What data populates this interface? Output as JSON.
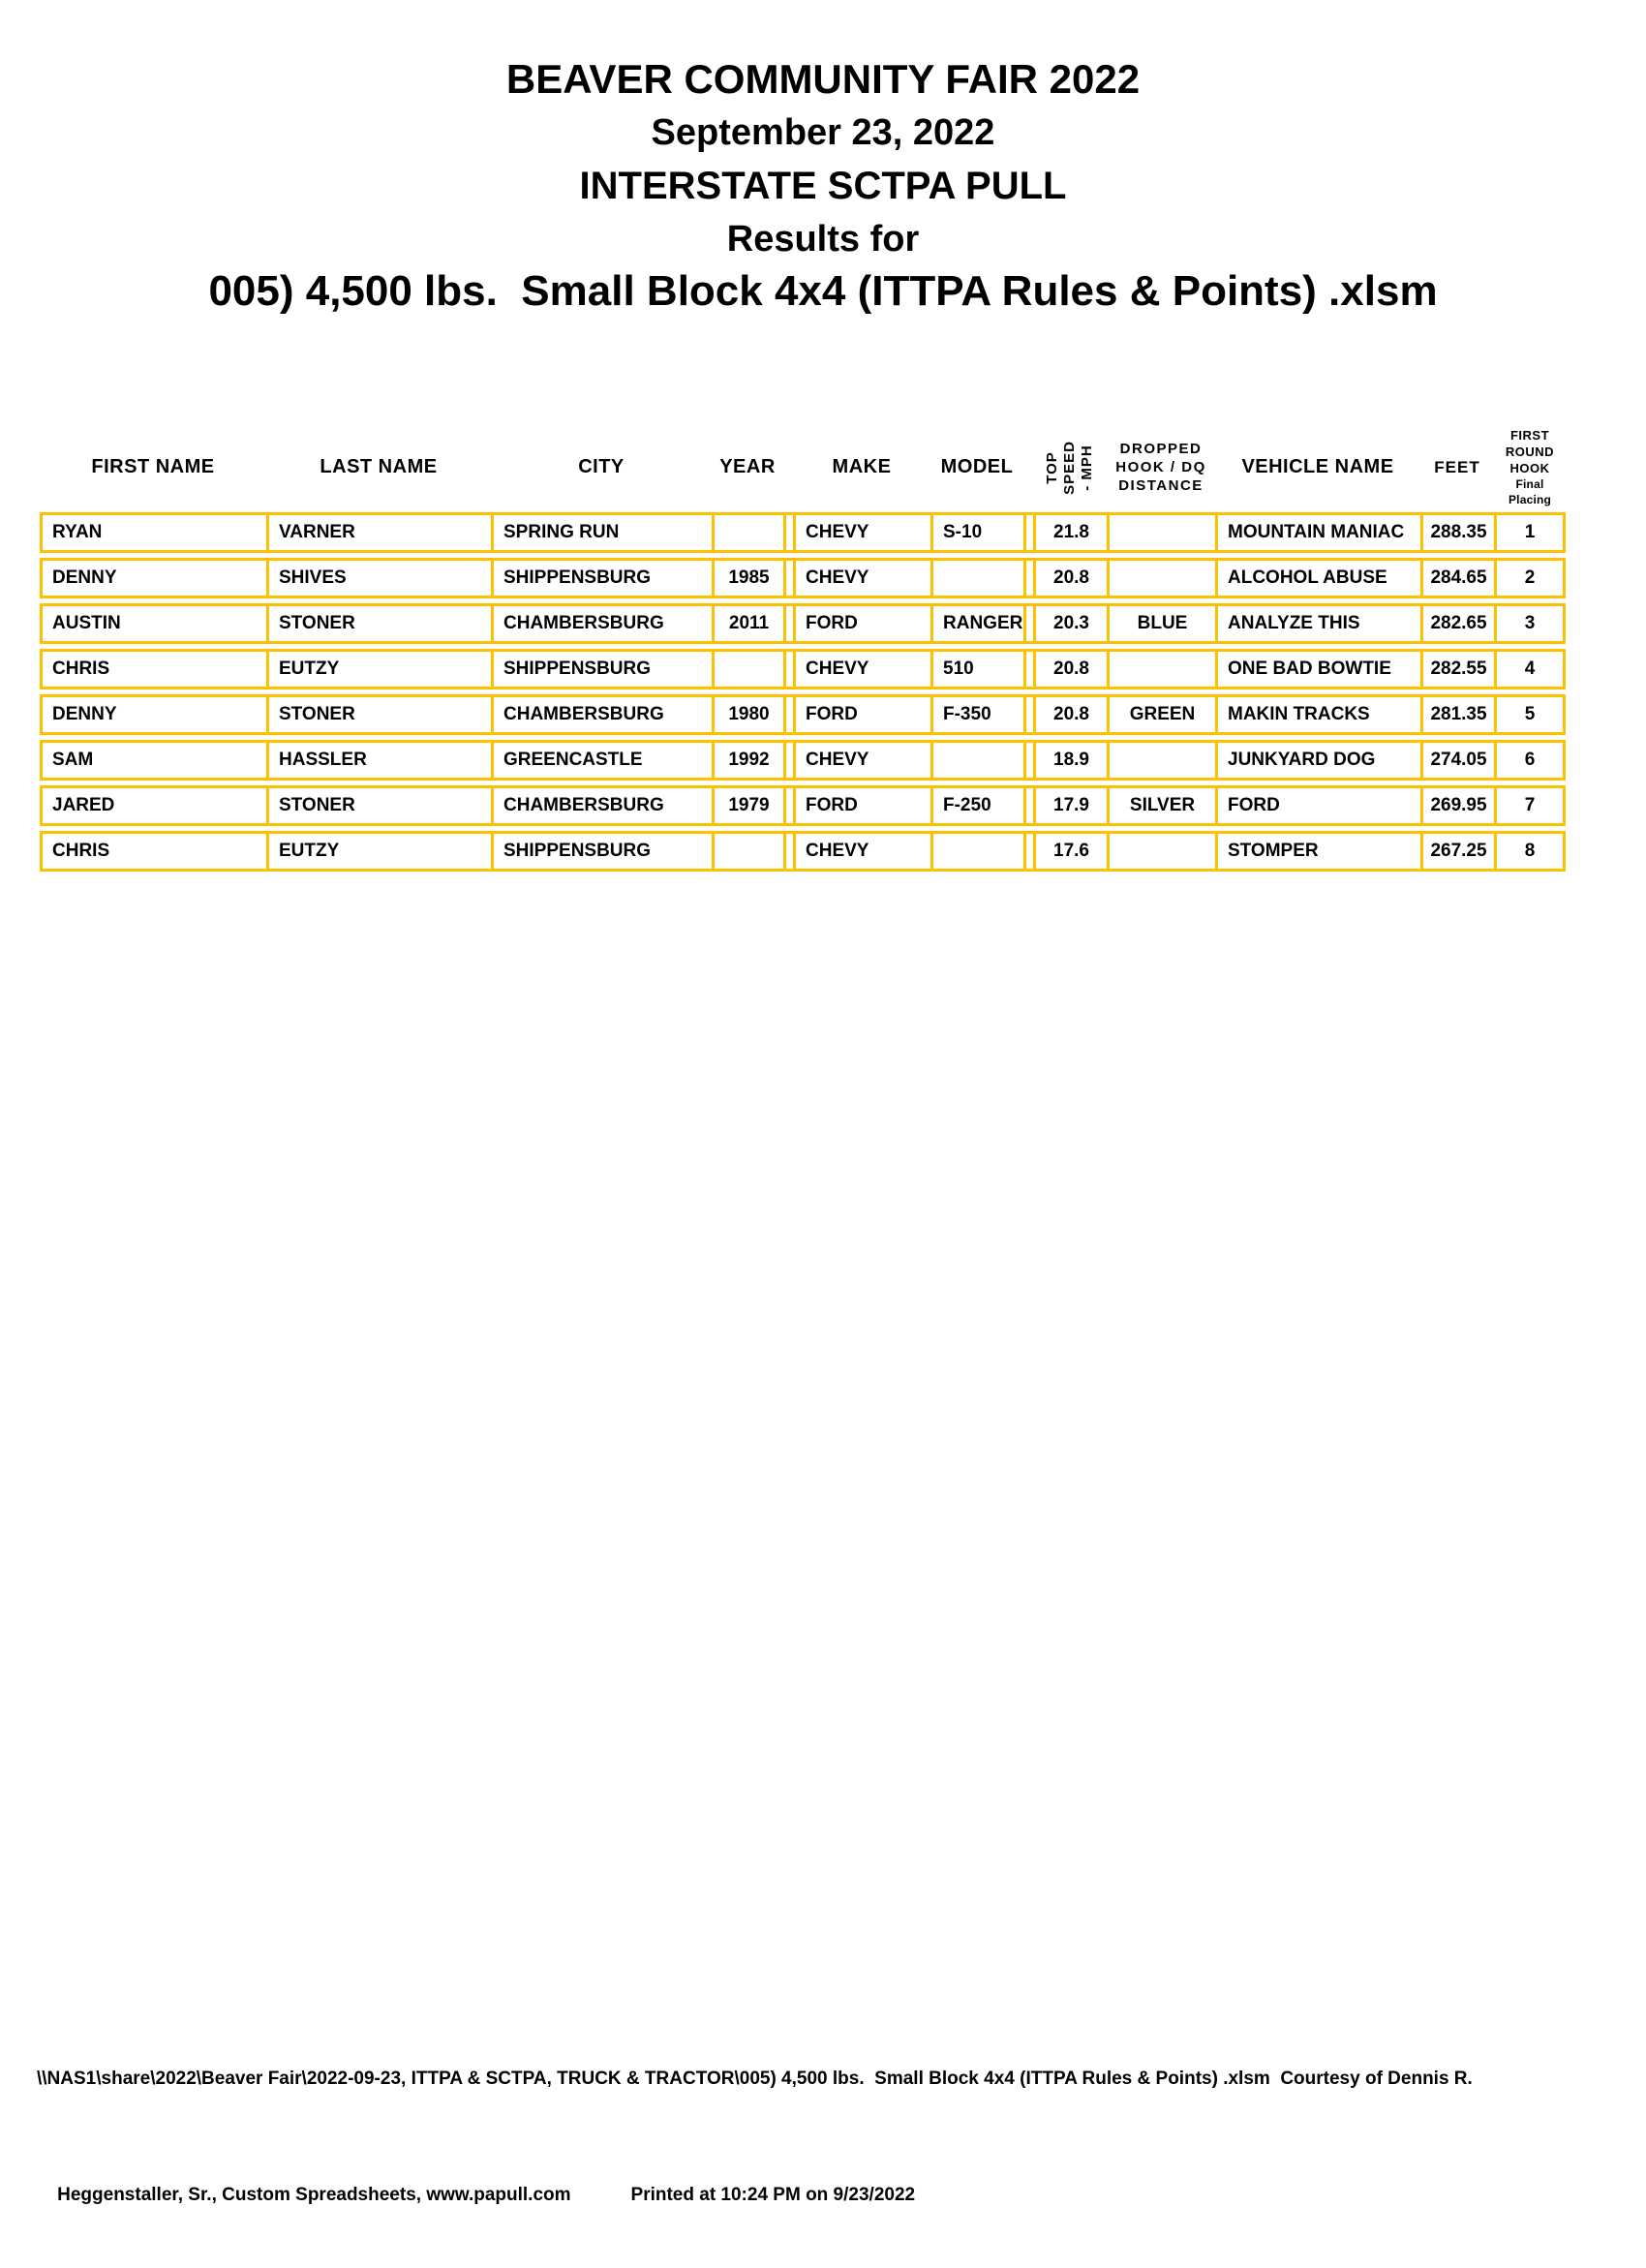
{
  "colors": {
    "table_border": "#FFC000",
    "text": "#000000",
    "background": "#FFFFFF"
  },
  "document": {
    "title_lines": [
      "BEAVER COMMUNITY FAIR 2022",
      "September 23, 2022",
      "INTERSTATE SCTPA PULL",
      "Results for",
      "005) 4,500 lbs.  Small Block 4x4 (ITTPA Rules & Points) .xlsm"
    ]
  },
  "table": {
    "headers": {
      "first_name": "FIRST NAME",
      "last_name": "LAST NAME",
      "city": "CITY",
      "year": "YEAR",
      "make": "MAKE",
      "model": "MODEL",
      "top_speed_lines": [
        "TOP",
        "SPEED",
        "- MPH"
      ],
      "dropped_lines": [
        "DROPPED",
        "HOOK / DQ",
        "DISTANCE"
      ],
      "vehicle": "VEHICLE NAME",
      "feet": "FEET",
      "first_round_lines": [
        "FIRST ROUND",
        "HOOK"
      ],
      "final_placing": "Final Placing"
    },
    "rows": [
      {
        "first_name": "RYAN",
        "last_name": "VARNER",
        "city": "SPRING RUN",
        "year": "",
        "make": "CHEVY",
        "model": "S-10",
        "top_speed": "21.8",
        "dropped": "",
        "vehicle": "MOUNTAIN MANIAC",
        "feet": "288.35",
        "placing": "1"
      },
      {
        "first_name": "DENNY",
        "last_name": "SHIVES",
        "city": "SHIPPENSBURG",
        "year": "1985",
        "make": "CHEVY",
        "model": "",
        "top_speed": "20.8",
        "dropped": "",
        "vehicle": "ALCOHOL ABUSE",
        "feet": "284.65",
        "placing": "2"
      },
      {
        "first_name": "AUSTIN",
        "last_name": "STONER",
        "city": "CHAMBERSBURG",
        "year": "2011",
        "make": "FORD",
        "model": "RANGER",
        "top_speed": "20.3",
        "dropped": "BLUE",
        "vehicle": "ANALYZE THIS",
        "feet": "282.65",
        "placing": "3"
      },
      {
        "first_name": "CHRIS",
        "last_name": "EUTZY",
        "city": "SHIPPENSBURG",
        "year": "",
        "make": "CHEVY",
        "model": "510",
        "top_speed": "20.8",
        "dropped": "",
        "vehicle": "ONE BAD BOWTIE",
        "feet": "282.55",
        "placing": "4"
      },
      {
        "first_name": "DENNY",
        "last_name": "STONER",
        "city": "CHAMBERSBURG",
        "year": "1980",
        "make": "FORD",
        "model": "F-350",
        "top_speed": "20.8",
        "dropped": "GREEN",
        "vehicle": "MAKIN TRACKS",
        "feet": "281.35",
        "placing": "5"
      },
      {
        "first_name": "SAM",
        "last_name": "HASSLER",
        "city": "GREENCASTLE",
        "year": "1992",
        "make": "CHEVY",
        "model": "",
        "top_speed": "18.9",
        "dropped": "",
        "vehicle": "JUNKYARD DOG",
        "feet": "274.05",
        "placing": "6"
      },
      {
        "first_name": "JARED",
        "last_name": "STONER",
        "city": "CHAMBERSBURG",
        "year": "1979",
        "make": "FORD",
        "model": "F-250",
        "top_speed": "17.9",
        "dropped": "SILVER",
        "vehicle": "FORD",
        "feet": "269.95",
        "placing": "7"
      },
      {
        "first_name": "CHRIS",
        "last_name": "EUTZY",
        "city": "SHIPPENSBURG",
        "year": "",
        "make": "CHEVY",
        "model": "",
        "top_speed": "17.6",
        "dropped": "",
        "vehicle": "STOMPER",
        "feet": "267.25",
        "placing": "8"
      }
    ]
  },
  "footer": {
    "line1": "\\\\NAS1\\share\\2022\\Beaver Fair\\2022-09-23, ITTPA & SCTPA, TRUCK & TRACTOR\\005) 4,500 lbs.  Small Block 4x4 (ITTPA Rules & Points) .xlsm  Courtesy of Dennis R.",
    "line2": "Heggenstaller, Sr., Custom Spreadsheets, www.papull.com",
    "printed": "Printed at 10:24 PM on 9/23/2022"
  }
}
